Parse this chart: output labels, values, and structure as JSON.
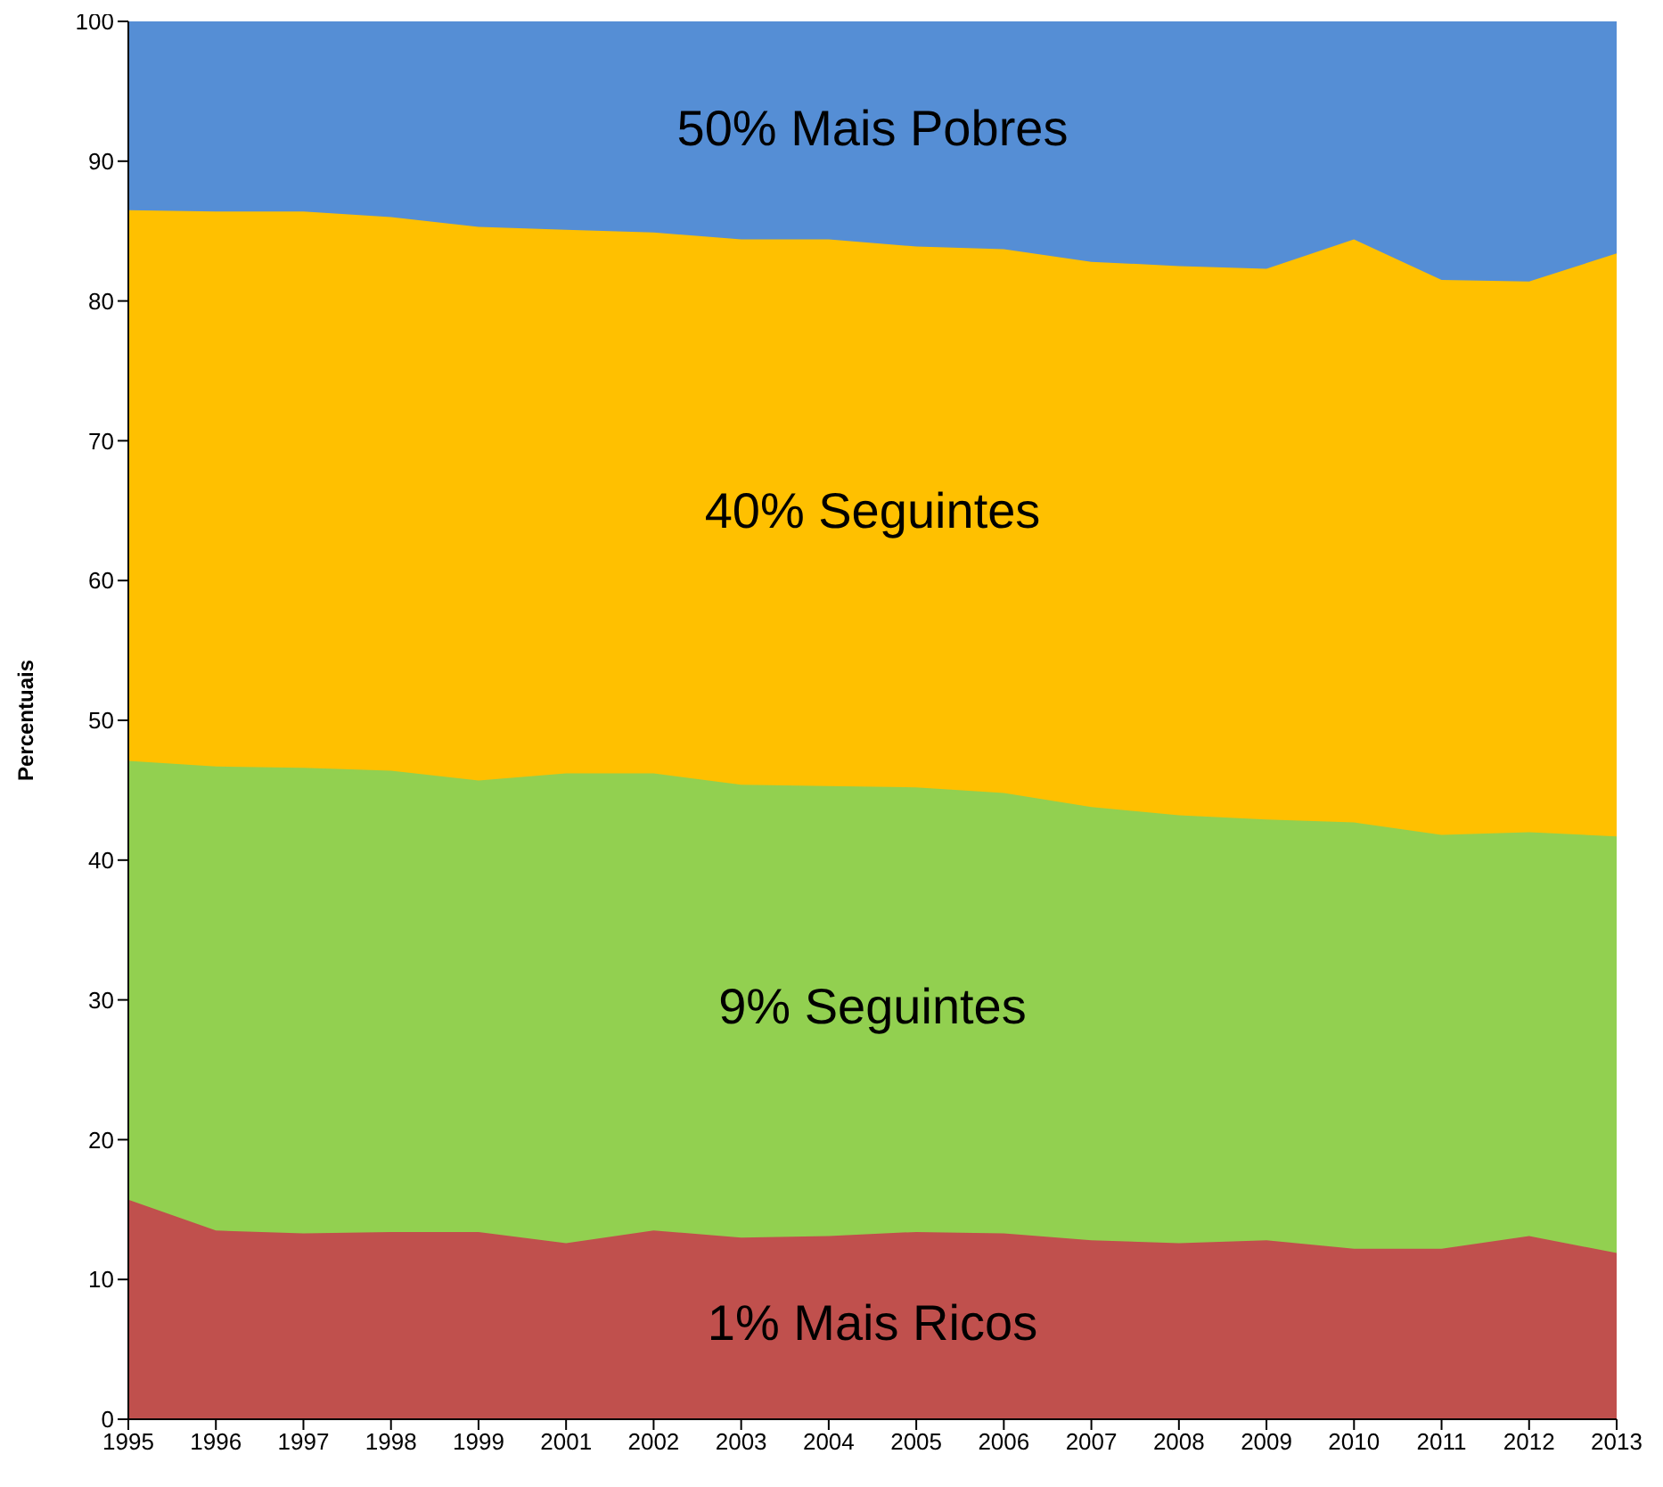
{
  "chart_data": {
    "type": "area",
    "stacked": true,
    "ylabel": "Percentuais",
    "categories": [
      "1995",
      "1996",
      "1997",
      "1998",
      "1999",
      "2001",
      "2002",
      "2003",
      "2004",
      "2005",
      "2006",
      "2007",
      "2008",
      "2009",
      "2010",
      "2011",
      "2012",
      "2013"
    ],
    "ylim": [
      0,
      100
    ],
    "yticks": [
      0,
      10,
      20,
      30,
      40,
      50,
      60,
      70,
      80,
      90,
      100
    ],
    "grid": false,
    "legend": false,
    "series": [
      {
        "name": "1% Mais Ricos",
        "color": "#c0504d",
        "values": [
          15.7,
          13.5,
          13.3,
          13.4,
          13.4,
          12.6,
          13.5,
          13.0,
          13.1,
          13.4,
          13.3,
          12.8,
          12.6,
          12.8,
          12.2,
          12.2,
          13.1,
          11.9
        ]
      },
      {
        "name": "9% Seguintes",
        "color": "#92d050",
        "values": [
          31.4,
          33.2,
          33.3,
          33.0,
          32.3,
          33.6,
          32.7,
          32.4,
          32.2,
          31.8,
          31.5,
          31.0,
          30.6,
          30.1,
          30.5,
          29.6,
          28.9,
          29.8
        ]
      },
      {
        "name": "40% Seguintes",
        "color": "#ffc000",
        "values": [
          39.4,
          39.7,
          39.8,
          39.6,
          39.6,
          38.9,
          38.7,
          39.0,
          39.1,
          38.7,
          38.9,
          39.0,
          39.3,
          39.4,
          41.7,
          39.7,
          39.4,
          41.7
        ]
      },
      {
        "name": "50% Mais Pobres",
        "color": "#558ed5",
        "values": [
          13.5,
          13.6,
          13.6,
          14.0,
          14.7,
          14.9,
          15.1,
          15.6,
          15.6,
          16.1,
          16.3,
          17.2,
          17.5,
          17.7,
          15.6,
          18.5,
          18.6,
          16.6
        ]
      }
    ]
  }
}
